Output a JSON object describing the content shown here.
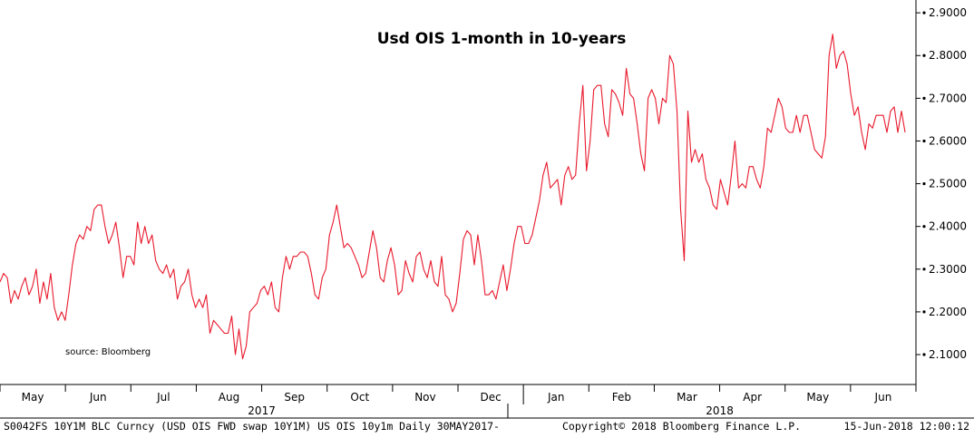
{
  "chart_data": {
    "type": "line",
    "title": "Usd OIS 1-month in 10-years",
    "xlabel": "",
    "ylabel": "",
    "ylim": [
      2.03,
      2.93
    ],
    "y_ticks": [
      "2.1000",
      "2.2000",
      "2.3000",
      "2.4000",
      "2.5000",
      "2.6000",
      "2.7000",
      "2.8000",
      "2.9000"
    ],
    "x_ticks": [
      "May",
      "Jun",
      "Jul",
      "Aug",
      "Sep",
      "Oct",
      "Nov",
      "Dec",
      "Jan",
      "Feb",
      "Mar",
      "Apr",
      "May",
      "Jun"
    ],
    "year_labels": [
      "2017",
      "2018"
    ],
    "annotation": "source: Bloomberg",
    "series_color": "#e8192c",
    "grid": false,
    "series": [
      {
        "values": [
          2.27,
          2.29,
          2.28,
          2.22,
          2.25,
          2.23,
          2.26,
          2.28,
          2.24,
          2.26,
          2.3,
          2.22,
          2.27,
          2.23,
          2.29,
          2.21,
          2.18,
          2.2,
          2.18,
          2.24,
          2.31,
          2.36,
          2.38,
          2.37,
          2.4,
          2.39,
          2.44,
          2.45,
          2.45,
          2.4,
          2.36,
          2.38,
          2.41,
          2.35,
          2.28,
          2.33,
          2.33,
          2.31,
          2.41,
          2.36,
          2.4,
          2.36,
          2.38,
          2.32,
          2.3,
          2.29,
          2.31,
          2.28,
          2.3,
          2.23,
          2.26,
          2.27,
          2.3,
          2.24,
          2.21,
          2.23,
          2.21,
          2.24,
          2.15,
          2.18,
          2.17,
          2.16,
          2.15,
          2.15,
          2.19,
          2.1,
          2.16,
          2.09,
          2.12,
          2.2,
          2.21,
          2.22,
          2.25,
          2.26,
          2.24,
          2.27,
          2.21,
          2.2,
          2.28,
          2.33,
          2.3,
          2.33,
          2.33,
          2.34,
          2.34,
          2.33,
          2.29,
          2.24,
          2.23,
          2.28,
          2.3,
          2.38,
          2.41,
          2.45,
          2.4,
          2.35,
          2.36,
          2.35,
          2.33,
          2.31,
          2.28,
          2.29,
          2.34,
          2.39,
          2.35,
          2.28,
          2.27,
          2.32,
          2.35,
          2.31,
          2.24,
          2.25,
          2.32,
          2.29,
          2.27,
          2.33,
          2.34,
          2.3,
          2.28,
          2.32,
          2.27,
          2.26,
          2.33,
          2.24,
          2.23,
          2.2,
          2.22,
          2.29,
          2.37,
          2.39,
          2.38,
          2.31,
          2.38,
          2.32,
          2.24,
          2.24,
          2.25,
          2.23,
          2.27,
          2.31,
          2.25,
          2.3,
          2.36,
          2.4,
          2.4,
          2.36,
          2.36,
          2.38,
          2.42,
          2.46,
          2.52,
          2.55,
          2.49,
          2.5,
          2.51,
          2.45,
          2.52,
          2.54,
          2.51,
          2.52,
          2.64,
          2.73,
          2.53,
          2.6,
          2.72,
          2.73,
          2.73,
          2.64,
          2.61,
          2.72,
          2.71,
          2.69,
          2.66,
          2.77,
          2.71,
          2.7,
          2.64,
          2.57,
          2.53,
          2.7,
          2.72,
          2.7,
          2.64,
          2.7,
          2.69,
          2.8,
          2.78,
          2.67,
          2.44,
          2.32,
          2.67,
          2.55,
          2.58,
          2.55,
          2.57,
          2.51,
          2.49,
          2.45,
          2.44,
          2.51,
          2.48,
          2.45,
          2.52,
          2.6,
          2.49,
          2.5,
          2.49,
          2.54,
          2.54,
          2.51,
          2.49,
          2.54,
          2.63,
          2.62,
          2.66,
          2.7,
          2.68,
          2.63,
          2.62,
          2.62,
          2.66,
          2.62,
          2.66,
          2.66,
          2.62,
          2.58,
          2.57,
          2.56,
          2.61,
          2.8,
          2.85,
          2.77,
          2.8,
          2.81,
          2.78,
          2.71,
          2.66,
          2.68,
          2.62,
          2.58,
          2.64,
          2.63,
          2.66,
          2.66,
          2.66,
          2.62,
          2.67,
          2.68,
          2.62,
          2.67,
          2.62
        ]
      }
    ]
  },
  "footer": {
    "left": "S0042FS 10Y1M BLC Curncy (USD OIS FWD swap 10Y1M) US OIS 10y1m  Daily 30MAY2017-",
    "center": "Copyright© 2018 Bloomberg Finance L.P.",
    "right": "15-Jun-2018 12:00:12"
  }
}
